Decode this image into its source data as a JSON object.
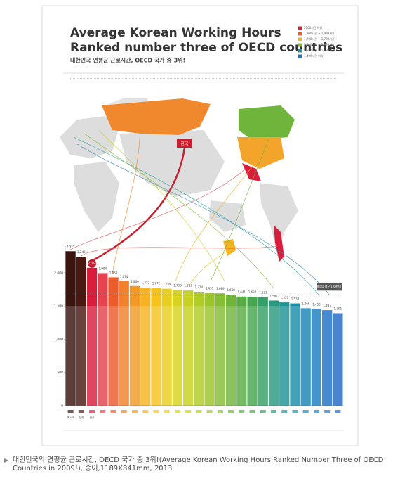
{
  "chart_data": {
    "type": "bar",
    "title": "Average Korean Working Hours",
    "subtitle": "Ranked number three of OECD countries",
    "korean_title": "대한민국 연평균 근로시간, OECD 국가 중 3위!",
    "map_label": "한국",
    "categories": [
      "멕시코",
      "칠레",
      "한국",
      null,
      null,
      null,
      null,
      null,
      null,
      null,
      null,
      null,
      null,
      null,
      null,
      null,
      null,
      null,
      null,
      null,
      null,
      null,
      null,
      null,
      null,
      null
    ],
    "values": [
      2323,
      2240,
      2074,
      1994,
      1930,
      1874,
      1800,
      1777,
      1772,
      1759,
      1738,
      1733,
      1714,
      1699,
      1689,
      1668,
      1641,
      1637,
      1632,
      1581,
      1553,
      1538,
      1466,
      1453,
      1437,
      1391
    ],
    "value_labels": [
      "2,323",
      "2,240",
      "2,074",
      "1,994",
      "1,930",
      "1,874",
      "1,800",
      "1,777",
      "1,772",
      "1,759",
      "1,738",
      "1,733",
      "1,714",
      "1,699",
      "1,689",
      "1,668",
      "1,641",
      "1,637",
      "1,632",
      "1,581",
      "1,553",
      "1,538",
      "1,466",
      "1,453",
      "1,437",
      "1,391"
    ],
    "colors": [
      "#3b1410",
      "#4a1a12",
      "#d81e3c",
      "#e6434f",
      "#ec5b2a",
      "#f0812a",
      "#f39a25",
      "#f6b21f",
      "#f5c31c",
      "#e9cf1d",
      "#d8d31e",
      "#c6d21f",
      "#b0cc25",
      "#9cc52b",
      "#86be33",
      "#6fb53c",
      "#59ad44",
      "#45a64f",
      "#35a066",
      "#2a9a7e",
      "#1f9495",
      "#1a8ea8",
      "#1a86b8",
      "#1c7dc3",
      "#1e72c8",
      "#2168c9"
    ],
    "ylim": [
      0,
      2400
    ],
    "yticks": [
      0,
      {
        "value": 500,
        "label": "500"
      },
      {
        "value": 1000,
        "label": "1,000"
      },
      {
        "value": 1500,
        "label": "1,500"
      },
      {
        "value": 2000,
        "label": "2,000"
      }
    ],
    "average": {
      "value": 1699,
      "label": "OECD 평균 1,699시간"
    },
    "legend": [
      {
        "label": "2000시간 이상",
        "color": "#d81e3c"
      },
      {
        "label": "1,800시간 ~ 1,999시간",
        "color": "#ec5b2a"
      },
      {
        "label": "1,700시간 ~ 1,799시간",
        "color": "#f6b21f"
      },
      {
        "label": "1,600시간 ~ 1,699시간",
        "color": "#86be33"
      },
      {
        "label": "1,500시간 ~ 1,599시간",
        "color": "#1f9495"
      },
      {
        "label": "1,499시간 이하",
        "color": "#1e72c8"
      }
    ]
  },
  "caption": "대한민국의 연평균 근로시간, OECD 국가 중 3위!(Average Korean Working Hours Ranked Number Three of OECD Countries in 2009!), 종이,1189X841mm, 2013"
}
